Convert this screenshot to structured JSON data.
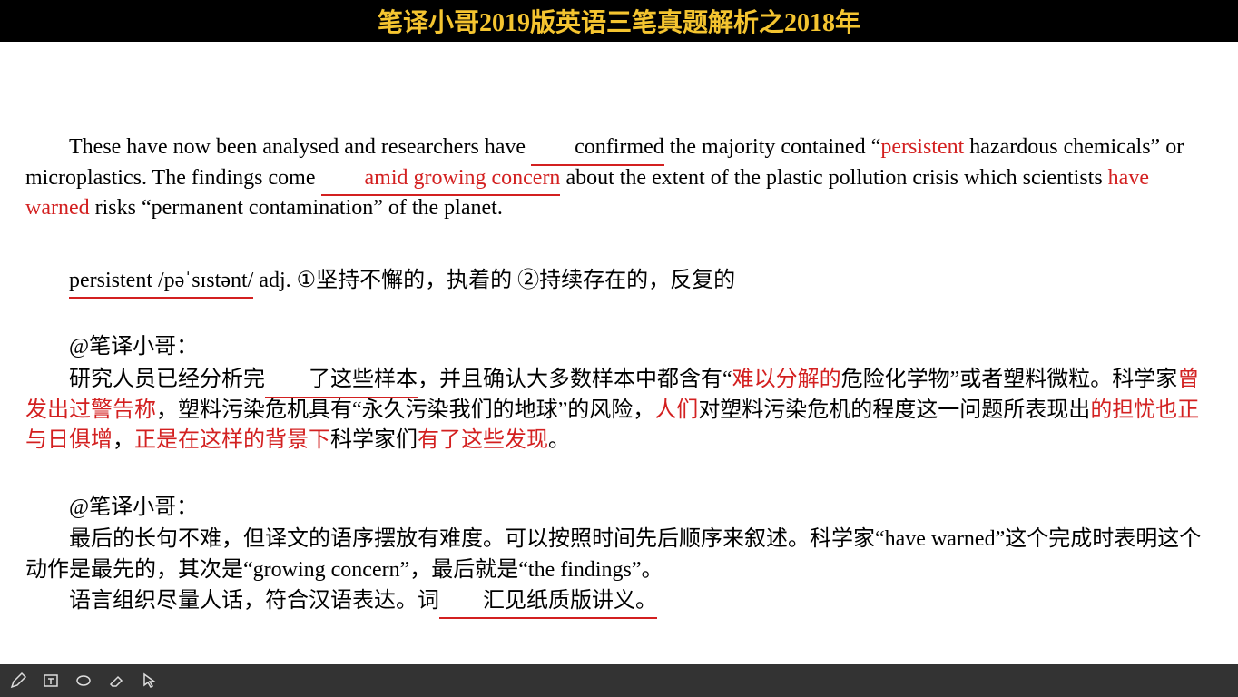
{
  "header": {
    "title": "笔译小哥2019版英语三笔真题解析之2018年",
    "bg_color": "#000000",
    "title_color": "#f4c430",
    "title_fontsize": 28
  },
  "colors": {
    "text": "#000000",
    "highlight": "#d32020",
    "page_bg": "#ffffff",
    "toolbar_bg": "#333333",
    "toolbar_icon": "#dddddd"
  },
  "typography": {
    "body_fontsize": 24,
    "line_height": 1.4,
    "font_family": "Times New Roman / SimSun"
  },
  "english_passage": {
    "segments": [
      {
        "t": "These have now been analysed and researchers have ",
        "style": "plain"
      },
      {
        "t": "confirmed",
        "style": "underline"
      },
      {
        "t": " the majority contained “",
        "style": "plain"
      },
      {
        "t": "persistent",
        "style": "red"
      },
      {
        "t": " hazardous chemicals” or microplastics. The findings come ",
        "style": "plain"
      },
      {
        "t": "amid growing concern",
        "style": "red_underline"
      },
      {
        "t": " about the extent of the plastic pollution crisis which scientists ",
        "style": "plain"
      },
      {
        "t": "have warned",
        "style": "red"
      },
      {
        "t": " risks “permanent contamination” of the planet.",
        "style": "plain"
      }
    ]
  },
  "vocab": {
    "word": "persistent",
    "pron": "/pəˈsɪstənt/",
    "pos": "adj.",
    "def1_marker": "①",
    "def1": "坚持不懈的，执着的",
    "def2_marker": "②",
    "def2": "持续存在的，反复的"
  },
  "commentary1": {
    "author": "@笔译小哥：",
    "segments": [
      {
        "t": "研究人员已经分析完",
        "style": "plain"
      },
      {
        "t": "了这些样本",
        "style": "underline"
      },
      {
        "t": "，并且确认大多数样本中都含有“",
        "style": "plain"
      },
      {
        "t": "难以分解的",
        "style": "red"
      },
      {
        "t": "危险化学物”或者塑料微粒。科学家",
        "style": "plain"
      },
      {
        "t": "曾发出过警告称",
        "style": "red"
      },
      {
        "t": "，塑料污染危机具有“永久污染我们的地球”的风险，",
        "style": "plain"
      },
      {
        "t": "人们",
        "style": "red"
      },
      {
        "t": "对塑料污染危机的程度这一问题所表现出",
        "style": "plain"
      },
      {
        "t": "的担忧也正与日俱增",
        "style": "red"
      },
      {
        "t": "，",
        "style": "plain"
      },
      {
        "t": "正是在这样的背景下",
        "style": "red"
      },
      {
        "t": "科学家们",
        "style": "plain"
      },
      {
        "t": "有了这些发现",
        "style": "red"
      },
      {
        "t": "。",
        "style": "plain"
      }
    ]
  },
  "commentary2": {
    "author": "@笔译小哥：",
    "line1": "最后的长句不难，但译文的语序摆放有难度。可以按照时间先后顺序来叙述。科学家“have warned”这个完成时表明这个动作是最先的，其次是“growing concern”，最后就是“the findings”。",
    "line2_pre": "语言组织尽量人话，符合汉语表达。词",
    "line2_underlined": "汇见纸质版讲义。"
  },
  "toolbar": {
    "icons": [
      "pen-icon",
      "text-icon",
      "ellipse-icon",
      "eraser-icon",
      "cursor-icon"
    ]
  }
}
